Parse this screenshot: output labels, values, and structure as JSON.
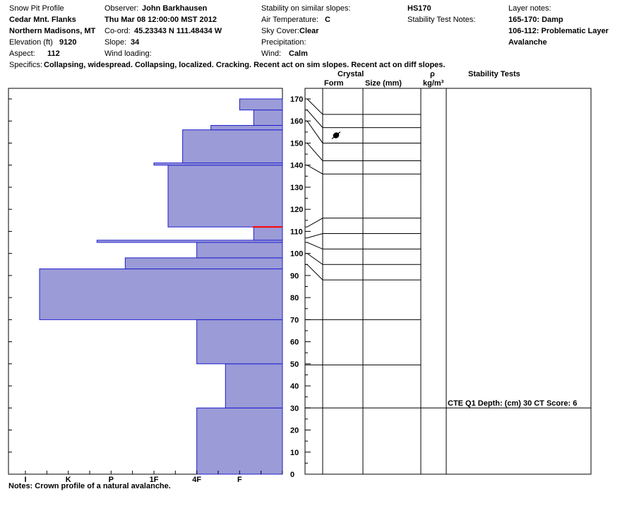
{
  "header": {
    "title": "Snow Pit Profile",
    "location_name": "Cedar Mnt. Flanks",
    "region": "Northern Madisons, MT",
    "elevation_label": "Elevation (ft)",
    "elevation_value": "9120",
    "aspect_label": "Aspect:",
    "aspect_value": "112",
    "observer_label": "Observer:",
    "observer_value": "John Barkhausen",
    "datetime": "Thu Mar 08 12:00:00 MST 2012",
    "coord_label": "Co-ord:",
    "coord_value": "45.23343 N 111.48434 W",
    "slope_label": "Slope:",
    "slope_value": "34",
    "wind_loading_label": "Wind loading:",
    "stability_label": "Stability on similar slopes:",
    "air_temp_label": "Air Temperature:",
    "air_temp_value": "C",
    "sky_label": "Sky Cover:",
    "sky_value": "Clear",
    "precip_label": "Precipitation:",
    "wind_label": "Wind:",
    "wind_value": "Calm",
    "hs": "HS170",
    "stability_notes_label": "Stability Test Notes:",
    "layer_notes_label": "Layer notes:",
    "layer_note_1": "165-170: Damp",
    "layer_note_2": "106-112: Problematic Layer",
    "layer_note_3": "Avalanche",
    "specifics_label": "Specifics:",
    "specifics_value": "Collapsing, widespread. Collapsing, localized. Cracking. Recent act on sim slopes. Recent act on diff slopes."
  },
  "columns": {
    "crystal": "Crystal",
    "form": "Form",
    "size": "Size (mm)",
    "rho": "ρ",
    "density_unit": "kg/m³",
    "stability_tests": "Stability Tests"
  },
  "stability_test": "CTE Q1 Depth: (cm) 30 CT Score: 6",
  "notes": "Notes:  Crown profile of a natural avalanche.",
  "colors": {
    "hardness_fill": "#9b9bd7",
    "hardness_edge": "#1f1fd0",
    "marker": "#ff0000"
  },
  "chart_data": {
    "type": "bar",
    "title": "",
    "xlabel": "",
    "ylabel": "",
    "ylim": [
      0,
      170
    ],
    "y_ticks": [
      0,
      10,
      20,
      30,
      40,
      50,
      60,
      70,
      80,
      90,
      100,
      110,
      120,
      130,
      140,
      150,
      160,
      170
    ],
    "x_tick_labels": [
      "I",
      "K",
      "P",
      "1F",
      "4F",
      "F"
    ],
    "hardness_scale_note": "hardness index: F=1, 4F=2, 1F=3, P=4, K=5, I=6",
    "layers": [
      {
        "bottom": 0,
        "top": 30,
        "hardness": 2
      },
      {
        "bottom": 30,
        "top": 50,
        "hardness": 1.33
      },
      {
        "bottom": 50,
        "top": 70,
        "hardness": 2
      },
      {
        "bottom": 70,
        "top": 93,
        "hardness": 5.67
      },
      {
        "bottom": 93,
        "top": 98,
        "hardness": 3.67
      },
      {
        "bottom": 98,
        "top": 105,
        "hardness": 2
      },
      {
        "bottom": 105,
        "top": 106,
        "hardness": 4.33
      },
      {
        "bottom": 106,
        "top": 112,
        "hardness": 0.67
      },
      {
        "bottom": 112,
        "top": 140,
        "hardness": 2.67
      },
      {
        "bottom": 140,
        "top": 141,
        "hardness": 3
      },
      {
        "bottom": 141,
        "top": 156,
        "hardness": 2.33
      },
      {
        "bottom": 156,
        "top": 158,
        "hardness": 1.67
      },
      {
        "bottom": 158,
        "top": 165,
        "hardness": 0.67
      },
      {
        "bottom": 165,
        "top": 170,
        "hardness": 1
      }
    ],
    "marker_depth": 112,
    "layer_boundaries": [
      163,
      157,
      150,
      142,
      136,
      116,
      109,
      102,
      95,
      88
    ],
    "stability_test_depth": 30
  }
}
